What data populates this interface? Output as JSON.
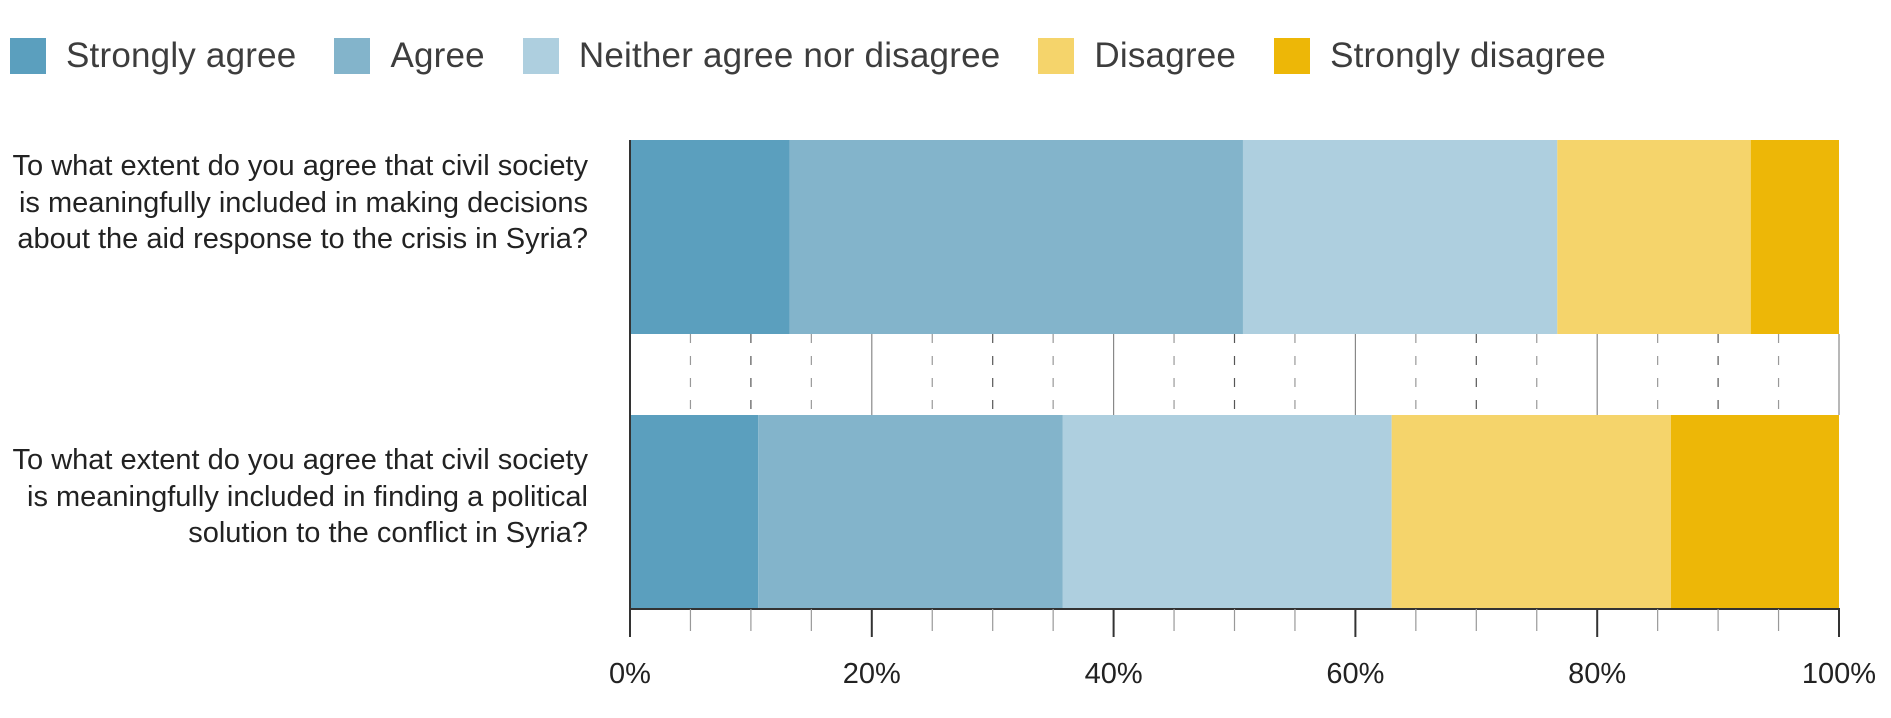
{
  "colors": {
    "strongly_agree": "#5b9fbe",
    "agree": "#83b4cb",
    "neither": "#aecfdf",
    "disagree": "#f5d46b",
    "strongly_disagree": "#edb707"
  },
  "legend": [
    {
      "label": "Strongly agree",
      "color": "#5b9fbe"
    },
    {
      "label": "Agree",
      "color": "#83b4cb"
    },
    {
      "label": "Neither agree nor disagree",
      "color": "#aecfdf"
    },
    {
      "label": "Disagree",
      "color": "#f5d46b"
    },
    {
      "label": "Strongly disagree",
      "color": "#edb707"
    }
  ],
  "chart_data": {
    "type": "bar",
    "orientation": "horizontal",
    "stacked": "percent",
    "categories": [
      "To what extent do you agree that civil society is meaningfully included in making decisions about the aid response to the crisis in Syria?",
      "To what extent do you agree that civil society is meaningfully included in finding a political solution to the conflict in Syria?"
    ],
    "series": [
      {
        "name": "Strongly agree",
        "color": "#5b9fbe",
        "values": [
          13.2,
          10.6
        ]
      },
      {
        "name": "Agree",
        "color": "#83b4cb",
        "values": [
          37.5,
          25.2
        ]
      },
      {
        "name": "Neither agree nor disagree",
        "color": "#aecfdf",
        "values": [
          26.0,
          27.2
        ]
      },
      {
        "name": "Disagree",
        "color": "#f5d46b",
        "values": [
          16.0,
          23.1
        ]
      },
      {
        "name": "Strongly disagree",
        "color": "#edb707",
        "values": [
          7.3,
          13.9
        ]
      }
    ],
    "x_ticks": [
      "0%",
      "20%",
      "40%",
      "60%",
      "80%",
      "100%"
    ],
    "xlim": [
      0,
      100
    ],
    "legend_position": "top",
    "grid": true
  }
}
